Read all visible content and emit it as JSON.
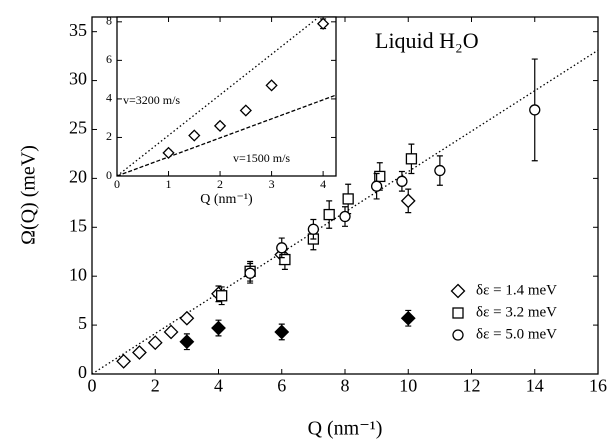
{
  "chart_data": [
    {
      "type": "scatter",
      "x_label": "Q (nm⁻¹)",
      "y_label": "Ω(Q)   (meV)",
      "annotation": "Liquid H₂O",
      "xlim": [
        0,
        16
      ],
      "ylim": [
        0,
        36.5
      ],
      "xticks": [
        0,
        2,
        4,
        6,
        8,
        10,
        12,
        14,
        16
      ],
      "yticks": [
        0,
        5,
        10,
        15,
        20,
        25,
        30,
        35
      ],
      "series": [
        {
          "name": "δε = 1.4 meV",
          "marker": "diamond",
          "filled": false,
          "color": "#000000",
          "x": [
            1,
            1.5,
            2,
            2.5,
            3,
            4,
            6,
            10
          ],
          "values": [
            1.3,
            2.2,
            3.2,
            4.3,
            5.7,
            8.2,
            12.2,
            17.7
          ],
          "errors": [
            0.3,
            0.3,
            0.3,
            0.3,
            0.4,
            0.8,
            1.0,
            1.2
          ]
        },
        {
          "name": "δε = 3.2 meV",
          "marker": "square",
          "filled": false,
          "color": "#000000",
          "x": [
            4.1,
            5,
            6.1,
            7,
            7.5,
            8.1,
            9.1,
            10.1
          ],
          "values": [
            8.0,
            10.5,
            11.7,
            13.8,
            16.3,
            17.9,
            20.2,
            22.0
          ],
          "errors": [
            0.9,
            1.0,
            1.0,
            1.1,
            1.4,
            1.5,
            1.4,
            1.5
          ]
        },
        {
          "name": "δε = 5.0 meV",
          "marker": "circle",
          "filled": false,
          "color": "#000000",
          "x": [
            5,
            6,
            7,
            8,
            9,
            9.8,
            11,
            14
          ],
          "values": [
            10.3,
            12.9,
            14.8,
            16.1,
            19.2,
            19.7,
            20.8,
            27.0
          ],
          "errors": [
            1.0,
            1.0,
            1.0,
            1.0,
            1.3,
            1.0,
            1.5,
            5.2
          ]
        },
        {
          "marker": "diamond",
          "filled": true,
          "color": "#000000",
          "x": [
            3,
            4,
            6,
            10
          ],
          "values": [
            3.3,
            4.7,
            4.3,
            5.7
          ],
          "errors": [
            0.8,
            0.8,
            0.8,
            0.8
          ]
        },
        {
          "marker": "line",
          "style": "dotted",
          "color": "#000000",
          "x": [
            0,
            16
          ],
          "values": [
            0,
            33.1
          ]
        }
      ]
    },
    {
      "type": "scatter",
      "x_label": "Q (nm⁻¹)",
      "xlim": [
        0,
        4.25
      ],
      "ylim": [
        0,
        8.25
      ],
      "xticks": [
        0,
        1,
        2,
        3,
        4
      ],
      "yticks": [
        0,
        2,
        4,
        6,
        8
      ],
      "series": [
        {
          "marker": "diamond",
          "filled": false,
          "color": "#000000",
          "x": [
            1,
            1.5,
            2,
            2.5,
            3,
            4
          ],
          "values": [
            1.2,
            2.1,
            2.6,
            3.4,
            4.7,
            7.9
          ],
          "errors": [
            0.15,
            0.15,
            0.15,
            0.15,
            0.15,
            0.25
          ]
        },
        {
          "name": "v=3200 m/s",
          "marker": "line",
          "style": "dotted",
          "color": "#000000",
          "x": [
            0,
            4.25
          ],
          "values": [
            0,
            8.95
          ]
        },
        {
          "name": "v=1500 m/s",
          "marker": "line",
          "style": "dashed",
          "color": "#000000",
          "x": [
            0,
            4.25
          ],
          "values": [
            0,
            4.2
          ]
        }
      ]
    }
  ]
}
